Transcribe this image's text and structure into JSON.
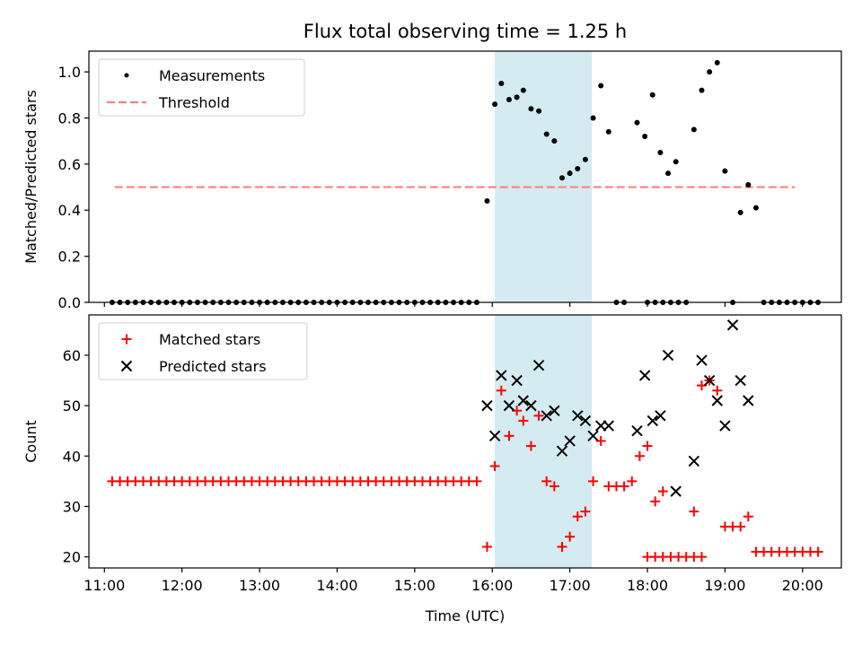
{
  "figure": {
    "title": "Flux total observing time = 1.25 h"
  },
  "colors": {
    "shade": "#d4ebf1",
    "threshold": "#ff7f7f",
    "matched": "#ff0000",
    "predicted": "#000000",
    "measurement": "#000000"
  },
  "chart_data": [
    {
      "type": "scatter",
      "ylabel": "Matched/Predicted stars",
      "xlabel": "",
      "xlim": [
        "10:48",
        "20:30"
      ],
      "ylim": [
        0,
        1.09
      ],
      "yticks": [
        "0.0",
        "0.2",
        "0.4",
        "0.6",
        "0.8",
        "1.0"
      ],
      "legend": {
        "placement": "top-left",
        "entries": [
          "Measurements",
          "Threshold"
        ]
      },
      "shaded_interval": [
        "16:02",
        "17:17"
      ],
      "threshold": {
        "name": "Threshold",
        "y": 0.5,
        "x": [
          "11:08",
          "19:54"
        ]
      },
      "series": [
        {
          "name": "Measurements",
          "points": [
            [
              "11:06",
              0
            ],
            [
              "11:12",
              0
            ],
            [
              "11:18",
              0
            ],
            [
              "11:24",
              0
            ],
            [
              "11:30",
              0
            ],
            [
              "11:36",
              0
            ],
            [
              "11:42",
              0
            ],
            [
              "11:48",
              0
            ],
            [
              "11:54",
              0
            ],
            [
              "12:00",
              0
            ],
            [
              "12:06",
              0
            ],
            [
              "12:12",
              0
            ],
            [
              "12:18",
              0
            ],
            [
              "12:24",
              0
            ],
            [
              "12:30",
              0
            ],
            [
              "12:36",
              0
            ],
            [
              "12:42",
              0
            ],
            [
              "12:48",
              0
            ],
            [
              "12:54",
              0
            ],
            [
              "13:00",
              0
            ],
            [
              "13:06",
              0
            ],
            [
              "13:12",
              0
            ],
            [
              "13:18",
              0
            ],
            [
              "13:24",
              0
            ],
            [
              "13:30",
              0
            ],
            [
              "13:36",
              0
            ],
            [
              "13:42",
              0
            ],
            [
              "13:48",
              0
            ],
            [
              "13:54",
              0
            ],
            [
              "14:00",
              0
            ],
            [
              "14:06",
              0
            ],
            [
              "14:12",
              0
            ],
            [
              "14:18",
              0
            ],
            [
              "14:24",
              0
            ],
            [
              "14:30",
              0
            ],
            [
              "14:36",
              0
            ],
            [
              "14:42",
              0
            ],
            [
              "14:48",
              0
            ],
            [
              "14:54",
              0
            ],
            [
              "15:00",
              0
            ],
            [
              "15:06",
              0
            ],
            [
              "15:12",
              0
            ],
            [
              "15:18",
              0
            ],
            [
              "15:24",
              0
            ],
            [
              "15:30",
              0
            ],
            [
              "15:36",
              0
            ],
            [
              "15:42",
              0
            ],
            [
              "15:48",
              0
            ],
            [
              "15:56",
              0.44
            ],
            [
              "16:02",
              0.86
            ],
            [
              "16:07",
              0.95
            ],
            [
              "16:13",
              0.88
            ],
            [
              "16:19",
              0.89
            ],
            [
              "16:24",
              0.92
            ],
            [
              "16:30",
              0.84
            ],
            [
              "16:36",
              0.83
            ],
            [
              "16:42",
              0.73
            ],
            [
              "16:48",
              0.7
            ],
            [
              "16:54",
              0.54
            ],
            [
              "17:00",
              0.56
            ],
            [
              "17:06",
              0.58
            ],
            [
              "17:12",
              0.62
            ],
            [
              "17:18",
              0.8
            ],
            [
              "17:24",
              0.94
            ],
            [
              "17:30",
              0.74
            ],
            [
              "17:36",
              0
            ],
            [
              "17:42",
              0
            ],
            [
              "17:52",
              0.78
            ],
            [
              "17:58",
              0.72
            ],
            [
              "18:04",
              0.9
            ],
            [
              "18:10",
              0.65
            ],
            [
              "18:16",
              0.56
            ],
            [
              "18:22",
              0.61
            ],
            [
              "18:00",
              0
            ],
            [
              "18:06",
              0
            ],
            [
              "18:12",
              0
            ],
            [
              "18:18",
              0
            ],
            [
              "18:24",
              0
            ],
            [
              "18:30",
              0
            ],
            [
              "18:36",
              0.75
            ],
            [
              "18:42",
              0.92
            ],
            [
              "18:48",
              1.0
            ],
            [
              "18:54",
              1.04
            ],
            [
              "19:00",
              0.57
            ],
            [
              "19:06",
              0
            ],
            [
              "19:12",
              0.39
            ],
            [
              "19:18",
              0.51
            ],
            [
              "19:24",
              0.41
            ],
            [
              "19:30",
              0
            ],
            [
              "19:36",
              0
            ],
            [
              "19:42",
              0
            ],
            [
              "19:48",
              0
            ],
            [
              "19:54",
              0
            ],
            [
              "20:00",
              0
            ],
            [
              "20:06",
              0
            ],
            [
              "20:12",
              0
            ]
          ]
        }
      ]
    },
    {
      "type": "scatter",
      "ylabel": "Count",
      "xlabel": "Time (UTC)",
      "xlim": [
        "10:48",
        "20:30"
      ],
      "ylim": [
        17.8,
        68
      ],
      "yticks": [
        "20",
        "30",
        "40",
        "50",
        "60"
      ],
      "xticks": [
        "11:00",
        "12:00",
        "13:00",
        "14:00",
        "15:00",
        "16:00",
        "17:00",
        "18:00",
        "19:00",
        "20:00"
      ],
      "legend": {
        "placement": "top-left",
        "entries": [
          "Matched stars",
          "Predicted stars"
        ]
      },
      "shaded_interval": [
        "16:02",
        "17:17"
      ],
      "series": [
        {
          "name": "Matched stars",
          "points": [
            [
              "11:06",
              35
            ],
            [
              "11:12",
              35
            ],
            [
              "11:18",
              35
            ],
            [
              "11:24",
              35
            ],
            [
              "11:30",
              35
            ],
            [
              "11:36",
              35
            ],
            [
              "11:42",
              35
            ],
            [
              "11:48",
              35
            ],
            [
              "11:54",
              35
            ],
            [
              "12:00",
              35
            ],
            [
              "12:06",
              35
            ],
            [
              "12:12",
              35
            ],
            [
              "12:18",
              35
            ],
            [
              "12:24",
              35
            ],
            [
              "12:30",
              35
            ],
            [
              "12:36",
              35
            ],
            [
              "12:42",
              35
            ],
            [
              "12:48",
              35
            ],
            [
              "12:54",
              35
            ],
            [
              "13:00",
              35
            ],
            [
              "13:06",
              35
            ],
            [
              "13:12",
              35
            ],
            [
              "13:18",
              35
            ],
            [
              "13:24",
              35
            ],
            [
              "13:30",
              35
            ],
            [
              "13:36",
              35
            ],
            [
              "13:42",
              35
            ],
            [
              "13:48",
              35
            ],
            [
              "13:54",
              35
            ],
            [
              "14:00",
              35
            ],
            [
              "14:06",
              35
            ],
            [
              "14:12",
              35
            ],
            [
              "14:18",
              35
            ],
            [
              "14:24",
              35
            ],
            [
              "14:30",
              35
            ],
            [
              "14:36",
              35
            ],
            [
              "14:42",
              35
            ],
            [
              "14:48",
              35
            ],
            [
              "14:54",
              35
            ],
            [
              "15:00",
              35
            ],
            [
              "15:06",
              35
            ],
            [
              "15:12",
              35
            ],
            [
              "15:18",
              35
            ],
            [
              "15:24",
              35
            ],
            [
              "15:30",
              35
            ],
            [
              "15:36",
              35
            ],
            [
              "15:42",
              35
            ],
            [
              "15:48",
              35
            ],
            [
              "15:56",
              22
            ],
            [
              "16:02",
              38
            ],
            [
              "16:07",
              53
            ],
            [
              "16:13",
              44
            ],
            [
              "16:19",
              49
            ],
            [
              "16:24",
              47
            ],
            [
              "16:30",
              42
            ],
            [
              "16:36",
              48
            ],
            [
              "16:42",
              35
            ],
            [
              "16:48",
              34
            ],
            [
              "16:54",
              22
            ],
            [
              "17:00",
              24
            ],
            [
              "17:06",
              28
            ],
            [
              "17:12",
              29
            ],
            [
              "17:18",
              35
            ],
            [
              "17:24",
              43
            ],
            [
              "17:30",
              34
            ],
            [
              "17:36",
              34
            ],
            [
              "17:42",
              34
            ],
            [
              "17:48",
              35
            ],
            [
              "17:54",
              40
            ],
            [
              "18:00",
              42
            ],
            [
              "18:06",
              31
            ],
            [
              "18:12",
              33
            ],
            [
              "18:00",
              20
            ],
            [
              "18:06",
              20
            ],
            [
              "18:12",
              20
            ],
            [
              "18:18",
              20
            ],
            [
              "18:24",
              20
            ],
            [
              "18:30",
              20
            ],
            [
              "18:36",
              20
            ],
            [
              "18:42",
              20
            ],
            [
              "18:36",
              29
            ],
            [
              "18:42",
              54
            ],
            [
              "18:48",
              55
            ],
            [
              "18:54",
              53
            ],
            [
              "19:00",
              26
            ],
            [
              "19:06",
              26
            ],
            [
              "19:12",
              26
            ],
            [
              "19:18",
              28
            ],
            [
              "19:24",
              21
            ],
            [
              "19:30",
              21
            ],
            [
              "19:36",
              21
            ],
            [
              "19:42",
              21
            ],
            [
              "19:48",
              21
            ],
            [
              "19:54",
              21
            ],
            [
              "20:00",
              21
            ],
            [
              "20:06",
              21
            ],
            [
              "20:12",
              21
            ]
          ]
        },
        {
          "name": "Predicted stars",
          "points": [
            [
              "15:56",
              50
            ],
            [
              "16:02",
              44
            ],
            [
              "16:07",
              56
            ],
            [
              "16:13",
              50
            ],
            [
              "16:19",
              55
            ],
            [
              "16:24",
              51
            ],
            [
              "16:30",
              50
            ],
            [
              "16:36",
              58
            ],
            [
              "16:42",
              48
            ],
            [
              "16:48",
              49
            ],
            [
              "16:54",
              41
            ],
            [
              "17:00",
              43
            ],
            [
              "17:06",
              48
            ],
            [
              "17:12",
              47
            ],
            [
              "17:18",
              44
            ],
            [
              "17:24",
              46
            ],
            [
              "17:30",
              46
            ],
            [
              "17:52",
              45
            ],
            [
              "17:58",
              56
            ],
            [
              "18:04",
              47
            ],
            [
              "18:10",
              48
            ],
            [
              "18:16",
              60
            ],
            [
              "18:22",
              33
            ],
            [
              "18:36",
              39
            ],
            [
              "18:42",
              59
            ],
            [
              "18:48",
              55
            ],
            [
              "18:54",
              51
            ],
            [
              "19:00",
              46
            ],
            [
              "19:06",
              66
            ],
            [
              "19:12",
              55
            ],
            [
              "19:18",
              51
            ]
          ]
        }
      ]
    }
  ]
}
